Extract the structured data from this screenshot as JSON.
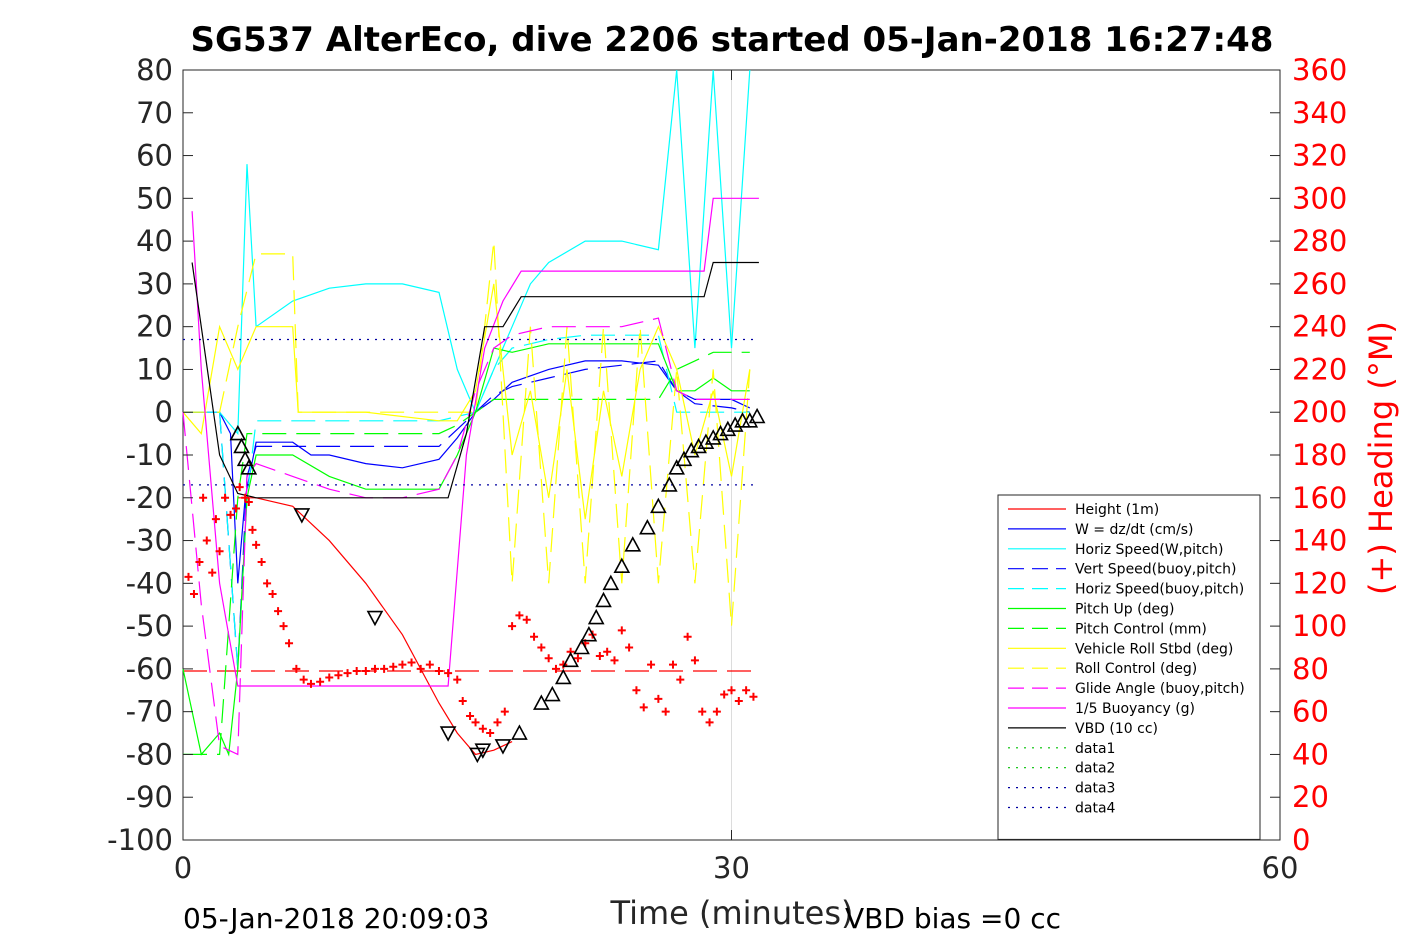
{
  "chart_data": {
    "type": "line",
    "title": "SG537 AlterEco, dive 2206 started 05-Jan-2018 16:27:48",
    "xlabel": "Time (minutes)",
    "ylabel_right": "(+) Heading (°M)",
    "xlim": [
      0,
      60
    ],
    "ylim_left": [
      -100,
      80
    ],
    "ylim_right": [
      0,
      360
    ],
    "x_ticks": [
      "0",
      "30",
      "60"
    ],
    "y_ticks_left": [
      "80",
      "70",
      "60",
      "50",
      "40",
      "30",
      "20",
      "10",
      "0",
      "-10",
      "-20",
      "-30",
      "-40",
      "-50",
      "-60",
      "-70",
      "-80",
      "-90",
      "-100"
    ],
    "y_ticks_right": [
      "360",
      "340",
      "320",
      "300",
      "280",
      "260",
      "240",
      "220",
      "200",
      "180",
      "160",
      "140",
      "120",
      "100",
      "80",
      "60",
      "40",
      "20",
      "0"
    ],
    "grid": "x at 30 only",
    "legend_position": "bottom-right",
    "footer_left": "05-Jan-2018 20:09:03",
    "footer_right": "VBD bias =0 cc",
    "colors": {
      "red": "#ff0000",
      "blue": "#0000ff",
      "cyan": "#00ffff",
      "green": "#00ff00",
      "yellow": "#ffff00",
      "magenta": "#ff00ff",
      "black": "#000000",
      "navy": "#0000a0"
    },
    "series": [
      {
        "name": "Height (1m)",
        "color": "#ff0000",
        "dash": "solid",
        "x": [
          3,
          4,
          6,
          8,
          10,
          12,
          14,
          15,
          16,
          17,
          18
        ],
        "y": [
          -20,
          -20,
          -22,
          -30,
          -40,
          -52,
          -68,
          -75,
          -80,
          -79,
          -77
        ]
      },
      {
        "name": "W = dz/dt (cm/s)",
        "color": "#0000ff",
        "dash": "solid",
        "x": [
          0,
          1,
          2,
          2.6,
          3,
          3.4,
          4,
          6,
          7,
          8,
          10,
          12,
          14,
          15,
          16,
          17,
          18,
          20,
          22,
          24,
          26,
          27,
          28,
          29,
          30,
          31
        ],
        "y": [
          0,
          0,
          0,
          -5,
          -40,
          -20,
          -7,
          -7,
          -10,
          -10,
          -12,
          -13,
          -11,
          -6,
          0,
          3,
          7,
          10,
          12,
          12,
          11,
          5,
          3,
          3,
          3,
          1
        ]
      },
      {
        "name": "Horiz Speed(W,pitch)",
        "color": "#00ffff",
        "dash": "solid",
        "x": [
          0,
          2,
          3,
          3.5,
          4,
          6,
          8,
          10,
          12,
          14,
          15,
          16,
          17,
          18,
          19,
          20,
          22,
          24,
          26,
          27,
          28,
          29,
          30,
          31
        ],
        "y": [
          0,
          0,
          -5,
          58,
          20,
          26,
          29,
          30,
          30,
          28,
          10,
          0,
          10,
          20,
          30,
          35,
          40,
          40,
          38,
          80,
          15,
          80,
          15,
          80
        ]
      },
      {
        "name": "Vert Speed(buoy,pitch)",
        "color": "#0000ff",
        "dash": "long",
        "x": [
          0,
          2,
          3,
          3.5,
          4,
          14,
          15,
          16,
          17,
          18,
          20,
          22,
          24,
          26,
          27,
          28,
          30,
          31
        ],
        "y": [
          0,
          0,
          -60,
          -15,
          -8,
          -8,
          -4,
          0,
          4,
          6,
          8,
          10,
          11,
          12,
          5,
          2,
          1,
          0
        ]
      },
      {
        "name": "Horiz Speed(buoy,pitch)",
        "color": "#00ffff",
        "dash": "long",
        "x": [
          0,
          2,
          3,
          3.5,
          4,
          14,
          15,
          16,
          17,
          18,
          20,
          22,
          24,
          26,
          27,
          31
        ],
        "y": [
          0,
          0,
          -60,
          -20,
          -2,
          -2,
          -1,
          0,
          10,
          15,
          17,
          18,
          18,
          18,
          0,
          0
        ]
      },
      {
        "name": "Pitch Up (deg)",
        "color": "#00ff00",
        "dash": "solid",
        "x": [
          0,
          1,
          2,
          2.5,
          3,
          3.5,
          4,
          6,
          8,
          10,
          12,
          14,
          15,
          16,
          17,
          18,
          20,
          22,
          24,
          26,
          27,
          28,
          29,
          30,
          31
        ],
        "y": [
          -60,
          -80,
          -75,
          -80,
          -60,
          -20,
          -10,
          -10,
          -15,
          -18,
          -18,
          -18,
          -10,
          0,
          15,
          14,
          16,
          16,
          16,
          16,
          5,
          5,
          8,
          5,
          5
        ]
      },
      {
        "name": "Pitch Control (mm)",
        "color": "#00ff00",
        "dash": "long",
        "x": [
          0,
          2,
          3,
          3.5,
          4,
          14,
          15,
          16,
          17,
          18,
          20,
          22,
          24,
          26,
          27,
          28,
          29,
          30,
          31
        ],
        "y": [
          -80,
          -80,
          -20,
          -5,
          -5,
          -5,
          -3,
          0,
          3,
          3,
          3,
          3,
          3,
          3,
          10,
          12,
          14,
          14,
          14
        ]
      },
      {
        "name": "Vehicle Roll Stbd (deg)",
        "color": "#ffff00",
        "dash": "solid",
        "x": [
          0,
          1,
          2,
          3,
          4,
          5,
          6,
          6.3,
          7,
          10,
          14,
          15,
          16,
          17,
          18,
          19,
          20,
          21,
          22,
          23,
          24,
          25,
          26,
          27,
          28,
          29,
          30,
          31
        ],
        "y": [
          0,
          -5,
          20,
          10,
          20,
          20,
          20,
          0,
          0,
          0,
          -2,
          -2,
          5,
          30,
          -10,
          5,
          -20,
          10,
          -25,
          5,
          -15,
          10,
          20,
          10,
          -10,
          5,
          -15,
          10
        ]
      },
      {
        "name": "Roll Control (deg)",
        "color": "#ffff00",
        "dash": "long",
        "x": [
          0,
          2,
          3,
          4,
          6,
          6.3,
          7,
          14,
          15,
          16,
          17,
          18,
          19,
          20,
          21,
          22,
          23,
          24,
          25,
          26,
          27,
          28,
          29,
          30,
          31
        ],
        "y": [
          0,
          0,
          20,
          37,
          37,
          0,
          0,
          0,
          0,
          0,
          40,
          -40,
          20,
          -40,
          20,
          -40,
          20,
          -40,
          20,
          -40,
          10,
          -40,
          10,
          -50,
          10
        ]
      },
      {
        "name": "Glide Angle (buoy,pitch)",
        "color": "#ff00ff",
        "dash": "long",
        "x": [
          0,
          1,
          2,
          3,
          3.5,
          4,
          6,
          8,
          10,
          12,
          14,
          15,
          16,
          17,
          18,
          20,
          22,
          24,
          26,
          27,
          28,
          29,
          30,
          31
        ],
        "y": [
          0,
          -45,
          -78,
          -80,
          -15,
          -12,
          -15,
          -18,
          -20,
          -20,
          -18,
          -10,
          5,
          15,
          18,
          20,
          20,
          20,
          22,
          5,
          3,
          3,
          3,
          3
        ]
      },
      {
        "name": "1/5 Buoyancy (g)",
        "color": "#ff00ff",
        "dash": "solid",
        "x": [
          0.5,
          1,
          2,
          3,
          14.5,
          15.5,
          16.5,
          17.5,
          18.5,
          20,
          22,
          24,
          26,
          28.5,
          29,
          30,
          31.5
        ],
        "y": [
          47,
          10,
          -40,
          -64,
          -64,
          -10,
          15,
          26,
          33,
          33,
          33,
          33,
          33,
          33,
          50,
          50,
          50
        ]
      },
      {
        "name": "VBD (10 cc)",
        "color": "#000000",
        "dash": "solid",
        "x": [
          0.5,
          2,
          3,
          4,
          14.5,
          15.5,
          16.5,
          17.5,
          18.5,
          20,
          22,
          24,
          26,
          28.5,
          29,
          30,
          31.5
        ],
        "y": [
          35,
          -10,
          -19,
          -20,
          -20,
          -5,
          20,
          20,
          27,
          27,
          27,
          27,
          27,
          27,
          35,
          35,
          35
        ]
      },
      {
        "name": "data1",
        "color": "#00c000",
        "dash": "dot",
        "x": [],
        "y": []
      },
      {
        "name": "data2",
        "color": "#00c000",
        "dash": "dot",
        "x": [],
        "y": []
      },
      {
        "name": "data3",
        "color": "#0000a0",
        "dash": "dot",
        "x": [
          0,
          31.5
        ],
        "y": [
          17,
          17
        ]
      },
      {
        "name": "data4",
        "color": "#0000a0",
        "dash": "dot",
        "x": [
          0,
          31.5
        ],
        "y": [
          -17,
          -17
        ]
      }
    ],
    "reference_lines": [
      {
        "y": -60.5,
        "color": "#ff0000",
        "dash": "long",
        "x": [
          0,
          31.5
        ]
      }
    ],
    "heading_points": {
      "color": "#ff0000",
      "x": [
        0.3,
        0.6,
        0.9,
        1.1,
        1.3,
        1.6,
        1.8,
        2.0,
        2.3,
        2.6,
        2.9,
        3.1,
        3.4,
        3.6,
        3.8,
        4.0,
        4.3,
        4.6,
        4.9,
        5.2,
        5.5,
        5.8,
        6.2,
        6.6,
        7.0,
        7.5,
        8.0,
        8.5,
        9.0,
        9.5,
        10.0,
        10.5,
        11.0,
        11.5,
        12.0,
        12.5,
        13.0,
        13.5,
        14.0,
        14.5,
        15.0,
        15.3,
        15.7,
        16.0,
        16.4,
        16.8,
        17.2,
        17.6,
        18.0,
        18.4,
        18.8,
        19.2,
        19.6,
        20.0,
        20.4,
        20.8,
        21.2,
        21.6,
        22.0,
        22.4,
        22.8,
        23.2,
        23.6,
        24.0,
        24.4,
        24.8,
        25.2,
        25.6,
        26.0,
        26.4,
        26.8,
        27.2,
        27.6,
        28.0,
        28.4,
        28.8,
        29.2,
        29.6,
        30.0,
        30.4,
        30.8,
        31.2
      ],
      "y": [
        123,
        115,
        130,
        160,
        140,
        125,
        150,
        135,
        160,
        152,
        155,
        165,
        160,
        158,
        145,
        138,
        130,
        120,
        115,
        107,
        100,
        92,
        80,
        75,
        73,
        74,
        76,
        77,
        78,
        79,
        79,
        80,
        80,
        81,
        82,
        83,
        80,
        82,
        79,
        78,
        75,
        65,
        58,
        55,
        52,
        50,
        55,
        60,
        100,
        105,
        103,
        95,
        90,
        85,
        80,
        82,
        88,
        85,
        92,
        96,
        86,
        88,
        84,
        98,
        90,
        70,
        62,
        82,
        66,
        60,
        82,
        75,
        95,
        84,
        60,
        55,
        60,
        68,
        70,
        65,
        70,
        67
      ]
    },
    "depth_markers": {
      "x": [
        3,
        3.2,
        3.4,
        3.6,
        6.5,
        10.5,
        14.5,
        16.1,
        16.4,
        17.5,
        18.4,
        19.6,
        20.2,
        20.8,
        21.2,
        21.8,
        22.2,
        22.6,
        23.0,
        23.4,
        24.0,
        24.6,
        25.4,
        26.0,
        26.6,
        27.0,
        27.4,
        27.8,
        28.2,
        28.6,
        29.0,
        29.4,
        29.8,
        30.2,
        30.6,
        31.0,
        31.4
      ],
      "y": [
        -5,
        -8,
        -11,
        -13,
        -24,
        -48,
        -75,
        -80,
        -79,
        -78,
        -75,
        -68,
        -66,
        -62,
        -58,
        -55,
        -52,
        -48,
        -44,
        -40,
        -36,
        -31,
        -27,
        -22,
        -17,
        -13,
        -11,
        -9,
        -8,
        -7,
        -6,
        -5,
        -4,
        -3,
        -2,
        -2,
        -1
      ]
    }
  }
}
